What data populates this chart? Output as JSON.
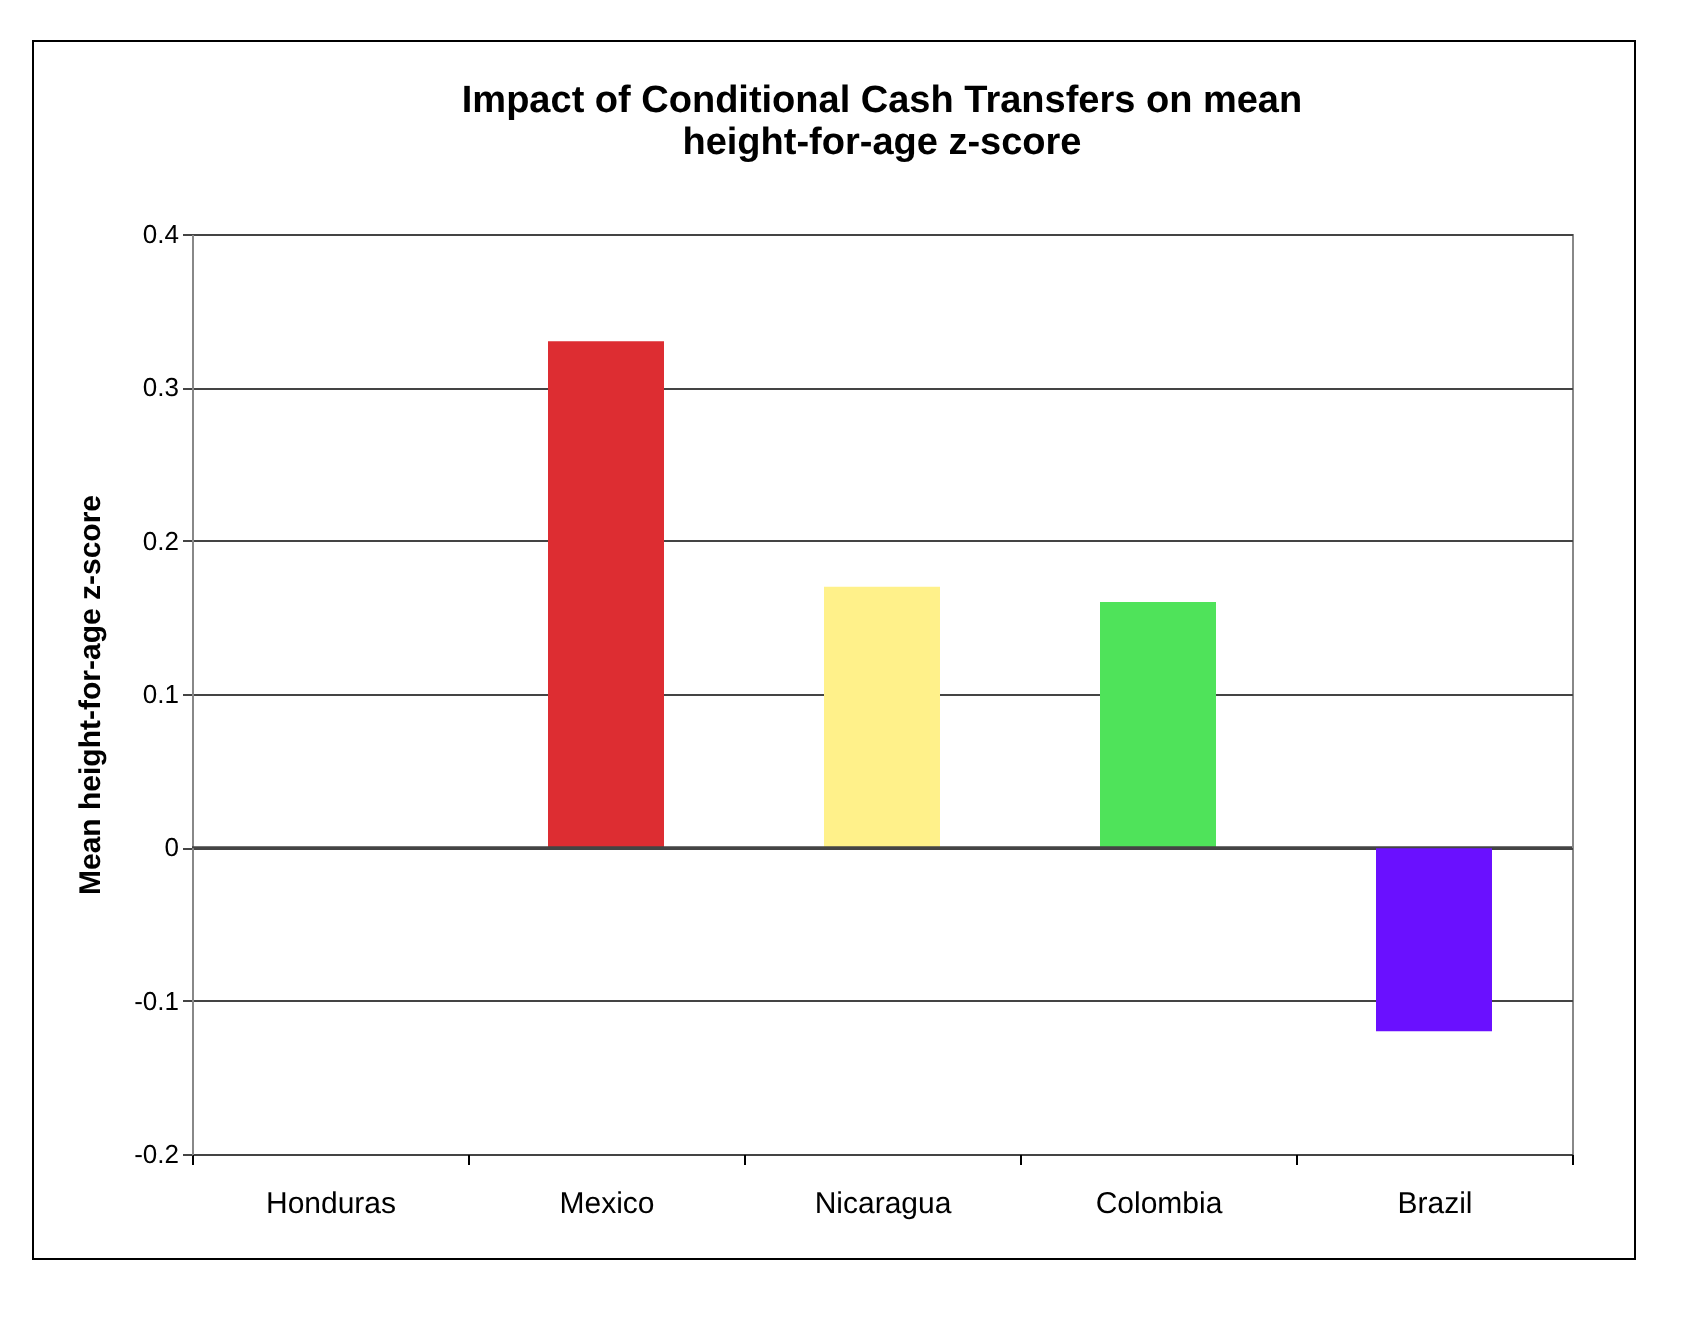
{
  "chart_data": {
    "type": "bar",
    "title": [
      "Impact of Conditional Cash Transfers on mean",
      "height-for-age z-score"
    ],
    "ylabel": "Mean height-for-age z-score",
    "categories": [
      "Honduras",
      "Mexico",
      "Nicaragua",
      "Colombia",
      "Brazil"
    ],
    "values": [
      0,
      0.33,
      0.17,
      0.16,
      -0.12
    ],
    "colors": [
      "#dd2d32",
      "#dd2d32",
      "#fff18a",
      "#4fe35a",
      "#6a10ff"
    ],
    "ylim": [
      -0.2,
      0.4
    ],
    "yticks": [
      -0.2,
      -0.1,
      0,
      0.1,
      0.2,
      0.3,
      0.4
    ],
    "grid": "y"
  }
}
